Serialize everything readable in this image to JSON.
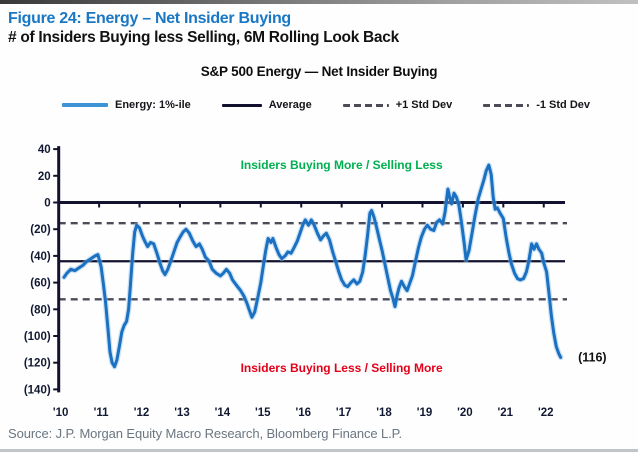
{
  "header": {
    "figure_title": "Figure 24: Energy – Net Insider Buying",
    "figure_subtitle": "# of Insiders Buying less Selling, 6M Rolling Look Back"
  },
  "footer": {
    "source": "Source: J.P. Morgan Equity Macro Research, Bloomberg Finance L.P."
  },
  "chart_data": {
    "type": "line",
    "title": "S&P 500 Energy — Net Insider Buying",
    "xlabel": "",
    "ylabel": "",
    "xlim": [
      2010,
      2022.85
    ],
    "ylim": [
      -140,
      40
    ],
    "grid": false,
    "legend_position": "top",
    "legend": [
      {
        "label": "Energy: 1%-ile",
        "style": "solid-blue"
      },
      {
        "label": "Average",
        "style": "solid-black"
      },
      {
        "label": "+1 Std Dev",
        "style": "dashed"
      },
      {
        "label": "-1 Std Dev",
        "style": "dashed"
      }
    ],
    "y_ticks": [
      {
        "label": "40",
        "value": 40
      },
      {
        "label": "20",
        "value": 20
      },
      {
        "label": "0",
        "value": 0
      },
      {
        "label": "(20)",
        "value": -20
      },
      {
        "label": "(40)",
        "value": -40
      },
      {
        "label": "(60)",
        "value": -60
      },
      {
        "label": "(80)",
        "value": -80
      },
      {
        "label": "(100)",
        "value": -100
      },
      {
        "label": "(120)",
        "value": -120
      },
      {
        "label": "(140)",
        "value": -140
      }
    ],
    "x_ticks": [
      {
        "label": "'10",
        "value": 2010
      },
      {
        "label": "'11",
        "value": 2011
      },
      {
        "label": "'12",
        "value": 2012
      },
      {
        "label": "'13",
        "value": 2013
      },
      {
        "label": "'14",
        "value": 2014
      },
      {
        "label": "'15",
        "value": 2015
      },
      {
        "label": "'16",
        "value": 2016
      },
      {
        "label": "'17",
        "value": 2017
      },
      {
        "label": "'18",
        "value": 2018
      },
      {
        "label": "'19",
        "value": 2019
      },
      {
        "label": "'20",
        "value": 2020
      },
      {
        "label": "'21",
        "value": 2021
      },
      {
        "label": "'22",
        "value": 2022
      }
    ],
    "reference_lines": {
      "zero": 0,
      "average": -44,
      "plus_1_std_dev": -15.5,
      "minus_1_std_dev": -72.5
    },
    "annotations": {
      "upper": {
        "text": "Insiders Buying More / Selling Less",
        "x": 2017.0,
        "y": 25,
        "color": "#00b050"
      },
      "lower": {
        "text": "Insiders Buying Less / Selling More",
        "x": 2017.0,
        "y": -127,
        "color": "#e50019"
      },
      "last_value": {
        "text": "(116)",
        "x": 2022.85,
        "y": -116,
        "color": "#111111"
      }
    },
    "colors": {
      "series_line": "#1b70c2",
      "series_halo": "#8fc0e8",
      "axis": "#12122e",
      "dashed": "#4c4c58",
      "tick_label": "#121a33"
    },
    "series": [
      {
        "name": "Energy: 1%-ile",
        "points": [
          [
            2010.13,
            -56
          ],
          [
            2010.2,
            -53
          ],
          [
            2010.3,
            -50
          ],
          [
            2010.4,
            -51
          ],
          [
            2010.5,
            -49
          ],
          [
            2010.6,
            -47
          ],
          [
            2010.7,
            -44
          ],
          [
            2010.8,
            -42
          ],
          [
            2010.9,
            -40
          ],
          [
            2010.97,
            -39
          ],
          [
            2011.05,
            -48
          ],
          [
            2011.1,
            -60
          ],
          [
            2011.16,
            -75
          ],
          [
            2011.22,
            -95
          ],
          [
            2011.27,
            -112
          ],
          [
            2011.32,
            -120
          ],
          [
            2011.38,
            -123
          ],
          [
            2011.44,
            -118
          ],
          [
            2011.5,
            -108
          ],
          [
            2011.56,
            -97
          ],
          [
            2011.62,
            -92
          ],
          [
            2011.68,
            -89
          ],
          [
            2011.73,
            -80
          ],
          [
            2011.78,
            -60
          ],
          [
            2011.83,
            -38
          ],
          [
            2011.88,
            -22
          ],
          [
            2011.93,
            -17
          ],
          [
            2012.0,
            -19
          ],
          [
            2012.07,
            -25
          ],
          [
            2012.13,
            -29
          ],
          [
            2012.2,
            -33
          ],
          [
            2012.27,
            -30
          ],
          [
            2012.35,
            -31
          ],
          [
            2012.43,
            -38
          ],
          [
            2012.5,
            -45
          ],
          [
            2012.57,
            -51
          ],
          [
            2012.63,
            -54
          ],
          [
            2012.7,
            -50
          ],
          [
            2012.77,
            -44
          ],
          [
            2012.85,
            -37
          ],
          [
            2012.93,
            -30
          ],
          [
            2013.0,
            -26
          ],
          [
            2013.08,
            -22
          ],
          [
            2013.15,
            -20
          ],
          [
            2013.23,
            -23
          ],
          [
            2013.32,
            -29
          ],
          [
            2013.4,
            -33
          ],
          [
            2013.48,
            -31
          ],
          [
            2013.55,
            -35
          ],
          [
            2013.63,
            -41
          ],
          [
            2013.72,
            -44
          ],
          [
            2013.8,
            -50
          ],
          [
            2013.9,
            -53
          ],
          [
            2014.0,
            -55
          ],
          [
            2014.07,
            -53
          ],
          [
            2014.15,
            -50
          ],
          [
            2014.23,
            -53
          ],
          [
            2014.3,
            -58
          ],
          [
            2014.4,
            -62
          ],
          [
            2014.5,
            -66
          ],
          [
            2014.58,
            -70
          ],
          [
            2014.65,
            -75
          ],
          [
            2014.72,
            -81
          ],
          [
            2014.78,
            -86
          ],
          [
            2014.85,
            -82
          ],
          [
            2014.92,
            -72
          ],
          [
            2015.0,
            -60
          ],
          [
            2015.06,
            -48
          ],
          [
            2015.12,
            -36
          ],
          [
            2015.18,
            -27
          ],
          [
            2015.25,
            -30
          ],
          [
            2015.3,
            -27
          ],
          [
            2015.38,
            -34
          ],
          [
            2015.45,
            -39
          ],
          [
            2015.52,
            -42
          ],
          [
            2015.6,
            -40
          ],
          [
            2015.67,
            -37
          ],
          [
            2015.75,
            -38
          ],
          [
            2015.82,
            -34
          ],
          [
            2015.9,
            -29
          ],
          [
            2015.97,
            -23
          ],
          [
            2016.05,
            -16
          ],
          [
            2016.1,
            -13
          ],
          [
            2016.18,
            -17
          ],
          [
            2016.25,
            -13
          ],
          [
            2016.32,
            -17
          ],
          [
            2016.4,
            -23
          ],
          [
            2016.48,
            -28
          ],
          [
            2016.55,
            -25
          ],
          [
            2016.62,
            -23
          ],
          [
            2016.7,
            -28
          ],
          [
            2016.78,
            -37
          ],
          [
            2016.85,
            -44
          ],
          [
            2016.93,
            -52
          ],
          [
            2017.0,
            -58
          ],
          [
            2017.08,
            -62
          ],
          [
            2017.15,
            -63
          ],
          [
            2017.23,
            -60
          ],
          [
            2017.3,
            -58
          ],
          [
            2017.38,
            -61
          ],
          [
            2017.45,
            -59
          ],
          [
            2017.52,
            -52
          ],
          [
            2017.58,
            -40
          ],
          [
            2017.64,
            -25
          ],
          [
            2017.7,
            -8
          ],
          [
            2017.74,
            -6
          ],
          [
            2017.8,
            -11
          ],
          [
            2017.86,
            -18
          ],
          [
            2017.93,
            -27
          ],
          [
            2018.0,
            -36
          ],
          [
            2018.07,
            -46
          ],
          [
            2018.14,
            -56
          ],
          [
            2018.21,
            -66
          ],
          [
            2018.27,
            -72
          ],
          [
            2018.32,
            -78
          ],
          [
            2018.37,
            -70
          ],
          [
            2018.42,
            -64
          ],
          [
            2018.48,
            -59
          ],
          [
            2018.55,
            -63
          ],
          [
            2018.62,
            -66
          ],
          [
            2018.68,
            -61
          ],
          [
            2018.75,
            -55
          ],
          [
            2018.82,
            -45
          ],
          [
            2018.9,
            -34
          ],
          [
            2018.97,
            -26
          ],
          [
            2019.05,
            -20
          ],
          [
            2019.12,
            -17
          ],
          [
            2019.2,
            -20
          ],
          [
            2019.28,
            -21
          ],
          [
            2019.35,
            -15
          ],
          [
            2019.42,
            -13
          ],
          [
            2019.5,
            -16
          ],
          [
            2019.56,
            -7
          ],
          [
            2019.63,
            10
          ],
          [
            2019.68,
            3
          ],
          [
            2019.72,
            -1
          ],
          [
            2019.78,
            7
          ],
          [
            2019.84,
            4
          ],
          [
            2019.9,
            -2
          ],
          [
            2019.96,
            -14
          ],
          [
            2020.03,
            -30
          ],
          [
            2020.08,
            -43
          ],
          [
            2020.15,
            -36
          ],
          [
            2020.22,
            -24
          ],
          [
            2020.3,
            -10
          ],
          [
            2020.38,
            3
          ],
          [
            2020.45,
            10
          ],
          [
            2020.52,
            17
          ],
          [
            2020.58,
            24
          ],
          [
            2020.64,
            28
          ],
          [
            2020.7,
            21
          ],
          [
            2020.75,
            4
          ],
          [
            2020.8,
            -5
          ],
          [
            2020.85,
            -4
          ],
          [
            2020.92,
            -8
          ],
          [
            2021.0,
            -12
          ],
          [
            2021.07,
            -26
          ],
          [
            2021.14,
            -38
          ],
          [
            2021.2,
            -46
          ],
          [
            2021.28,
            -53
          ],
          [
            2021.35,
            -57
          ],
          [
            2021.42,
            -58
          ],
          [
            2021.5,
            -57
          ],
          [
            2021.57,
            -52
          ],
          [
            2021.63,
            -44
          ],
          [
            2021.7,
            -31
          ],
          [
            2021.76,
            -35
          ],
          [
            2021.82,
            -31
          ],
          [
            2021.88,
            -35
          ],
          [
            2021.95,
            -38
          ],
          [
            2022.0,
            -45
          ],
          [
            2022.07,
            -52
          ],
          [
            2022.13,
            -68
          ],
          [
            2022.19,
            -85
          ],
          [
            2022.25,
            -98
          ],
          [
            2022.31,
            -108
          ],
          [
            2022.37,
            -113
          ],
          [
            2022.42,
            -116
          ]
        ]
      }
    ]
  }
}
